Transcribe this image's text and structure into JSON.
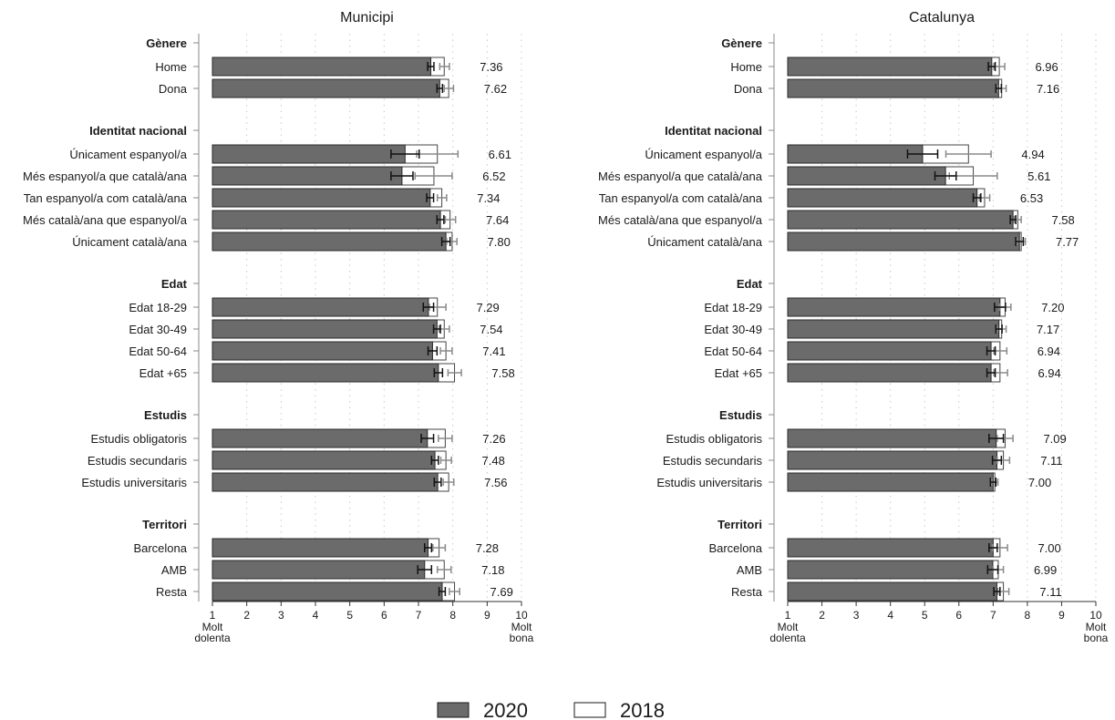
{
  "legend": [
    {
      "label": "2020",
      "color": "#6b6b6b"
    },
    {
      "label": "2018",
      "color": "#ffffff"
    }
  ],
  "chart_data": [
    {
      "type": "bar",
      "title": "Municipi",
      "xlim": [
        1,
        10
      ],
      "xticks": [
        "1",
        "2",
        "3",
        "4",
        "5",
        "6",
        "7",
        "8",
        "9",
        "10"
      ],
      "x_min_label": [
        "Molt",
        "dolenta"
      ],
      "x_max_label": [
        "Molt",
        "bona"
      ],
      "groups": [
        {
          "label": "Gènere",
          "items": [
            {
              "label": "Home",
              "v2020": 7.36,
              "v2018": 7.75,
              "ci2020": [
                7.27,
                7.45
              ],
              "ci2018": [
                7.62,
                7.9
              ],
              "value_label": "7.36"
            },
            {
              "label": "Dona",
              "v2020": 7.62,
              "v2018": 7.88,
              "ci2020": [
                7.54,
                7.7
              ],
              "ci2018": [
                7.75,
                8.02
              ],
              "value_label": "7.62"
            }
          ]
        },
        {
          "label": "Identitat nacional",
          "items": [
            {
              "label": "Únicament espanyol/a",
              "v2020": 6.61,
              "v2018": 7.55,
              "ci2020": [
                6.2,
                7.02
              ],
              "ci2018": [
                6.95,
                8.15
              ],
              "value_label": "6.61"
            },
            {
              "label": "Més espanyol/a que català/ana",
              "v2020": 6.52,
              "v2018": 7.45,
              "ci2020": [
                6.2,
                6.84
              ],
              "ci2018": [
                6.9,
                7.98
              ],
              "value_label": "6.52"
            },
            {
              "label": "Tan espanyol/a com català/ana",
              "v2020": 7.34,
              "v2018": 7.68,
              "ci2020": [
                7.24,
                7.44
              ],
              "ci2018": [
                7.55,
                7.82
              ],
              "value_label": "7.34"
            },
            {
              "label": "Més català/ana que espanyol/a",
              "v2020": 7.64,
              "v2018": 7.92,
              "ci2020": [
                7.54,
                7.74
              ],
              "ci2018": [
                7.78,
                8.08
              ],
              "value_label": "7.64"
            },
            {
              "label": "Únicament català/ana",
              "v2020": 7.8,
              "v2018": 7.98,
              "ci2020": [
                7.68,
                7.92
              ],
              "ci2018": [
                7.82,
                8.12
              ],
              "value_label": "7.80"
            }
          ]
        },
        {
          "label": "Edat",
          "items": [
            {
              "label": "Edat 18-29",
              "v2020": 7.29,
              "v2018": 7.55,
              "ci2020": [
                7.14,
                7.44
              ],
              "ci2018": [
                7.32,
                7.8
              ],
              "value_label": "7.29"
            },
            {
              "label": "Edat 30-49",
              "v2020": 7.54,
              "v2018": 7.75,
              "ci2020": [
                7.44,
                7.64
              ],
              "ci2018": [
                7.6,
                7.9
              ],
              "value_label": "7.54"
            },
            {
              "label": "Edat 50-64",
              "v2020": 7.41,
              "v2018": 7.8,
              "ci2020": [
                7.28,
                7.54
              ],
              "ci2018": [
                7.64,
                7.98
              ],
              "value_label": "7.41"
            },
            {
              "label": "Edat +65",
              "v2020": 7.58,
              "v2018": 8.05,
              "ci2020": [
                7.46,
                7.7
              ],
              "ci2018": [
                7.86,
                8.25
              ],
              "value_label": "7.58"
            }
          ]
        },
        {
          "label": "Estudis",
          "items": [
            {
              "label": "Estudis obligatoris",
              "v2020": 7.26,
              "v2018": 7.78,
              "ci2020": [
                7.08,
                7.44
              ],
              "ci2018": [
                7.58,
                7.98
              ],
              "value_label": "7.26"
            },
            {
              "label": "Estudis secundaris",
              "v2020": 7.48,
              "v2018": 7.8,
              "ci2020": [
                7.38,
                7.58
              ],
              "ci2018": [
                7.65,
                7.96
              ],
              "value_label": "7.48"
            },
            {
              "label": "Estudis universitaris",
              "v2020": 7.56,
              "v2018": 7.88,
              "ci2020": [
                7.46,
                7.66
              ],
              "ci2018": [
                7.72,
                8.03
              ],
              "value_label": "7.56"
            }
          ]
        },
        {
          "label": "Territori",
          "items": [
            {
              "label": "Barcelona",
              "v2020": 7.28,
              "v2018": 7.6,
              "ci2020": [
                7.18,
                7.38
              ],
              "ci2018": [
                7.42,
                7.78
              ],
              "value_label": "7.28"
            },
            {
              "label": "AMB",
              "v2020": 7.18,
              "v2018": 7.75,
              "ci2020": [
                6.98,
                7.38
              ],
              "ci2018": [
                7.55,
                7.95
              ],
              "value_label": "7.18"
            },
            {
              "label": "Resta",
              "v2020": 7.69,
              "v2018": 8.05,
              "ci2020": [
                7.6,
                7.78
              ],
              "ci2018": [
                7.9,
                8.2
              ],
              "value_label": "7.69"
            }
          ]
        }
      ]
    },
    {
      "type": "bar",
      "title": "Catalunya",
      "xlim": [
        1,
        10
      ],
      "xticks": [
        "1",
        "2",
        "3",
        "4",
        "5",
        "6",
        "7",
        "8",
        "9",
        "10"
      ],
      "x_min_label": [
        "Molt",
        "dolenta"
      ],
      "x_max_label": [
        "Molt",
        "bona"
      ],
      "groups": [
        {
          "label": "Gènere",
          "items": [
            {
              "label": "Home",
              "v2020": 6.96,
              "v2018": 7.18,
              "ci2020": [
                6.86,
                7.06
              ],
              "ci2018": [
                7.02,
                7.34
              ],
              "value_label": "6.96"
            },
            {
              "label": "Dona",
              "v2020": 7.16,
              "v2018": 7.25,
              "ci2020": [
                7.08,
                7.24
              ],
              "ci2018": [
                7.12,
                7.38
              ],
              "value_label": "7.16"
            }
          ]
        },
        {
          "label": "Identitat nacional",
          "items": [
            {
              "label": "Únicament espanyol/a",
              "v2020": 4.94,
              "v2018": 6.28,
              "ci2020": [
                4.5,
                5.38
              ],
              "ci2018": [
                5.62,
                6.94
              ],
              "value_label": "4.94"
            },
            {
              "label": "Més espanyol/a que català/ana",
              "v2020": 5.61,
              "v2018": 6.42,
              "ci2020": [
                5.3,
                5.92
              ],
              "ci2018": [
                5.72,
                7.12
              ],
              "value_label": "5.61"
            },
            {
              "label": "Tan espanyol/a com català/ana",
              "v2020": 6.53,
              "v2018": 6.75,
              "ci2020": [
                6.42,
                6.64
              ],
              "ci2018": [
                6.6,
                6.9
              ],
              "value_label": "6.53"
            },
            {
              "label": "Més català/ana que espanyol/a",
              "v2020": 7.58,
              "v2018": 7.72,
              "ci2020": [
                7.5,
                7.66
              ],
              "ci2018": [
                7.62,
                7.82
              ],
              "value_label": "7.58"
            },
            {
              "label": "Únicament català/ana",
              "v2020": 7.77,
              "v2018": 7.82,
              "ci2020": [
                7.66,
                7.88
              ],
              "ci2018": [
                7.7,
                7.94
              ],
              "value_label": "7.77"
            }
          ]
        },
        {
          "label": "Edat",
          "items": [
            {
              "label": "Edat 18-29",
              "v2020": 7.2,
              "v2018": 7.35,
              "ci2020": [
                7.04,
                7.36
              ],
              "ci2018": [
                7.18,
                7.52
              ],
              "value_label": "7.20"
            },
            {
              "label": "Edat 30-49",
              "v2020": 7.17,
              "v2018": 7.25,
              "ci2020": [
                7.08,
                7.26
              ],
              "ci2018": [
                7.12,
                7.38
              ],
              "value_label": "7.17"
            },
            {
              "label": "Edat 50-64",
              "v2020": 6.94,
              "v2018": 7.2,
              "ci2020": [
                6.82,
                7.06
              ],
              "ci2018": [
                7.02,
                7.4
              ],
              "value_label": "6.94"
            },
            {
              "label": "Edat +65",
              "v2020": 6.94,
              "v2018": 7.2,
              "ci2020": [
                6.82,
                7.06
              ],
              "ci2018": [
                7.02,
                7.42
              ],
              "value_label": "6.94"
            }
          ]
        },
        {
          "label": "Estudis",
          "items": [
            {
              "label": "Estudis obligatoris",
              "v2020": 7.09,
              "v2018": 7.35,
              "ci2020": [
                6.88,
                7.3
              ],
              "ci2018": [
                7.12,
                7.58
              ],
              "value_label": "7.09"
            },
            {
              "label": "Estudis secundaris",
              "v2020": 7.11,
              "v2018": 7.3,
              "ci2020": [
                6.98,
                7.24
              ],
              "ci2018": [
                7.12,
                7.48
              ],
              "value_label": "7.11"
            },
            {
              "label": "Estudis universitaris",
              "v2020": 7.0,
              "v2018": 7.05,
              "ci2020": [
                6.92,
                7.08
              ],
              "ci2018": [
                6.96,
                7.14
              ],
              "value_label": "7.00"
            }
          ]
        },
        {
          "label": "Territori",
          "items": [
            {
              "label": "Barcelona",
              "v2020": 7.0,
              "v2018": 7.2,
              "ci2020": [
                6.88,
                7.12
              ],
              "ci2018": [
                6.98,
                7.42
              ],
              "value_label": "7.00"
            },
            {
              "label": "AMB",
              "v2020": 6.99,
              "v2018": 7.15,
              "ci2020": [
                6.84,
                7.14
              ],
              "ci2018": [
                7.0,
                7.3
              ],
              "value_label": "6.99"
            },
            {
              "label": "Resta",
              "v2020": 7.11,
              "v2018": 7.3,
              "ci2020": [
                7.02,
                7.2
              ],
              "ci2018": [
                7.14,
                7.46
              ],
              "value_label": "7.11"
            }
          ]
        }
      ]
    }
  ]
}
